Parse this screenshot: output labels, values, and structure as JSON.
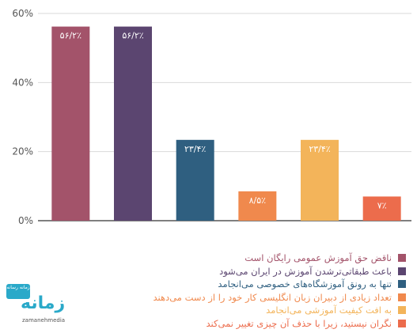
{
  "chart_data": {
    "type": "bar",
    "ylim": [
      0,
      60
    ],
    "yticks": [
      0,
      20,
      40,
      60
    ],
    "ytick_labels": [
      "0%",
      "20%",
      "40%",
      "60%"
    ],
    "grid": true,
    "categories": [
      "ناقض حق آموزش عمومی رایگان است",
      "باعث طبقاتی‌ترشدن آموزش در ایران می‌شود",
      "تنها به رونق آموزشگاه‌های خصوصی می‌انجامد",
      "تعداد زیادی از دبیران زبان انگلیسی کار خود را از دست می‌دهند",
      "به افت کیفیت آموزشی می‌انجامد",
      "نگران نیستید، زیرا با حذف آن چیزی تغییر نمی‌کند"
    ],
    "values": [
      56.2,
      56.2,
      23.4,
      8.5,
      23.4,
      7
    ],
    "data_labels": [
      "۵۶/۲٪",
      "۵۶/۲٪",
      "۲۳/۴٪",
      "۸/۵٪",
      "۲۳/۴٪",
      "۷٪"
    ],
    "colors": [
      "#a3536a",
      "#5b4570",
      "#2f5f80",
      "#f0894d",
      "#f3b45a",
      "#ec6c4c"
    ],
    "legend_position": "bottom-right"
  },
  "logo": {
    "badge_text": "زمانه رسانه",
    "word": "زمانه",
    "sub": "zamanehmedia"
  }
}
